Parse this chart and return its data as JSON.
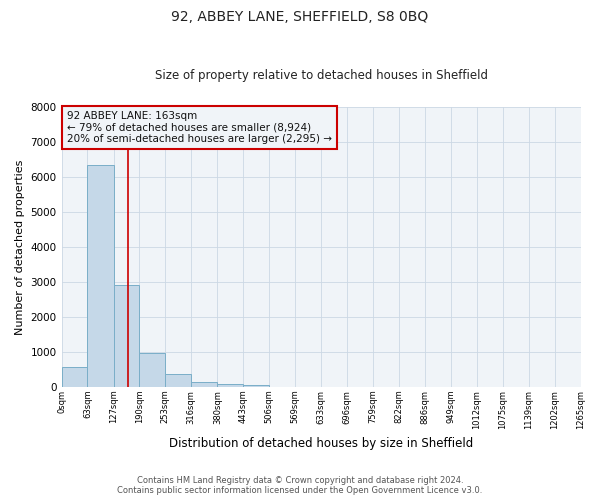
{
  "title": "92, ABBEY LANE, SHEFFIELD, S8 0BQ",
  "subtitle": "Size of property relative to detached houses in Sheffield",
  "xlabel": "Distribution of detached houses by size in Sheffield",
  "ylabel": "Number of detached properties",
  "footer_line1": "Contains HM Land Registry data © Crown copyright and database right 2024.",
  "footer_line2": "Contains public sector information licensed under the Open Government Licence v3.0.",
  "annotation_title": "92 ABBEY LANE: 163sqm",
  "annotation_line1": "← 79% of detached houses are smaller (8,924)",
  "annotation_line2": "20% of semi-detached houses are larger (2,295) →",
  "property_size": 163,
  "bar_edges": [
    0,
    63,
    127,
    190,
    253,
    316,
    380,
    443,
    506,
    569,
    633,
    696,
    759,
    822,
    886,
    949,
    1012,
    1075,
    1139,
    1202,
    1265
  ],
  "bar_values": [
    570,
    6330,
    2920,
    960,
    360,
    150,
    75,
    50,
    0,
    0,
    0,
    0,
    0,
    0,
    0,
    0,
    0,
    0,
    0,
    0
  ],
  "bar_color": "#c5d8e8",
  "bar_edge_color": "#7aaec8",
  "grid_color": "#ccd8e4",
  "vline_color": "#cc0000",
  "annotation_box_color": "#cc0000",
  "background_color": "#ffffff",
  "plot_bg_color": "#f0f4f8",
  "ylim": [
    0,
    8000
  ],
  "yticks": [
    0,
    1000,
    2000,
    3000,
    4000,
    5000,
    6000,
    7000,
    8000
  ]
}
